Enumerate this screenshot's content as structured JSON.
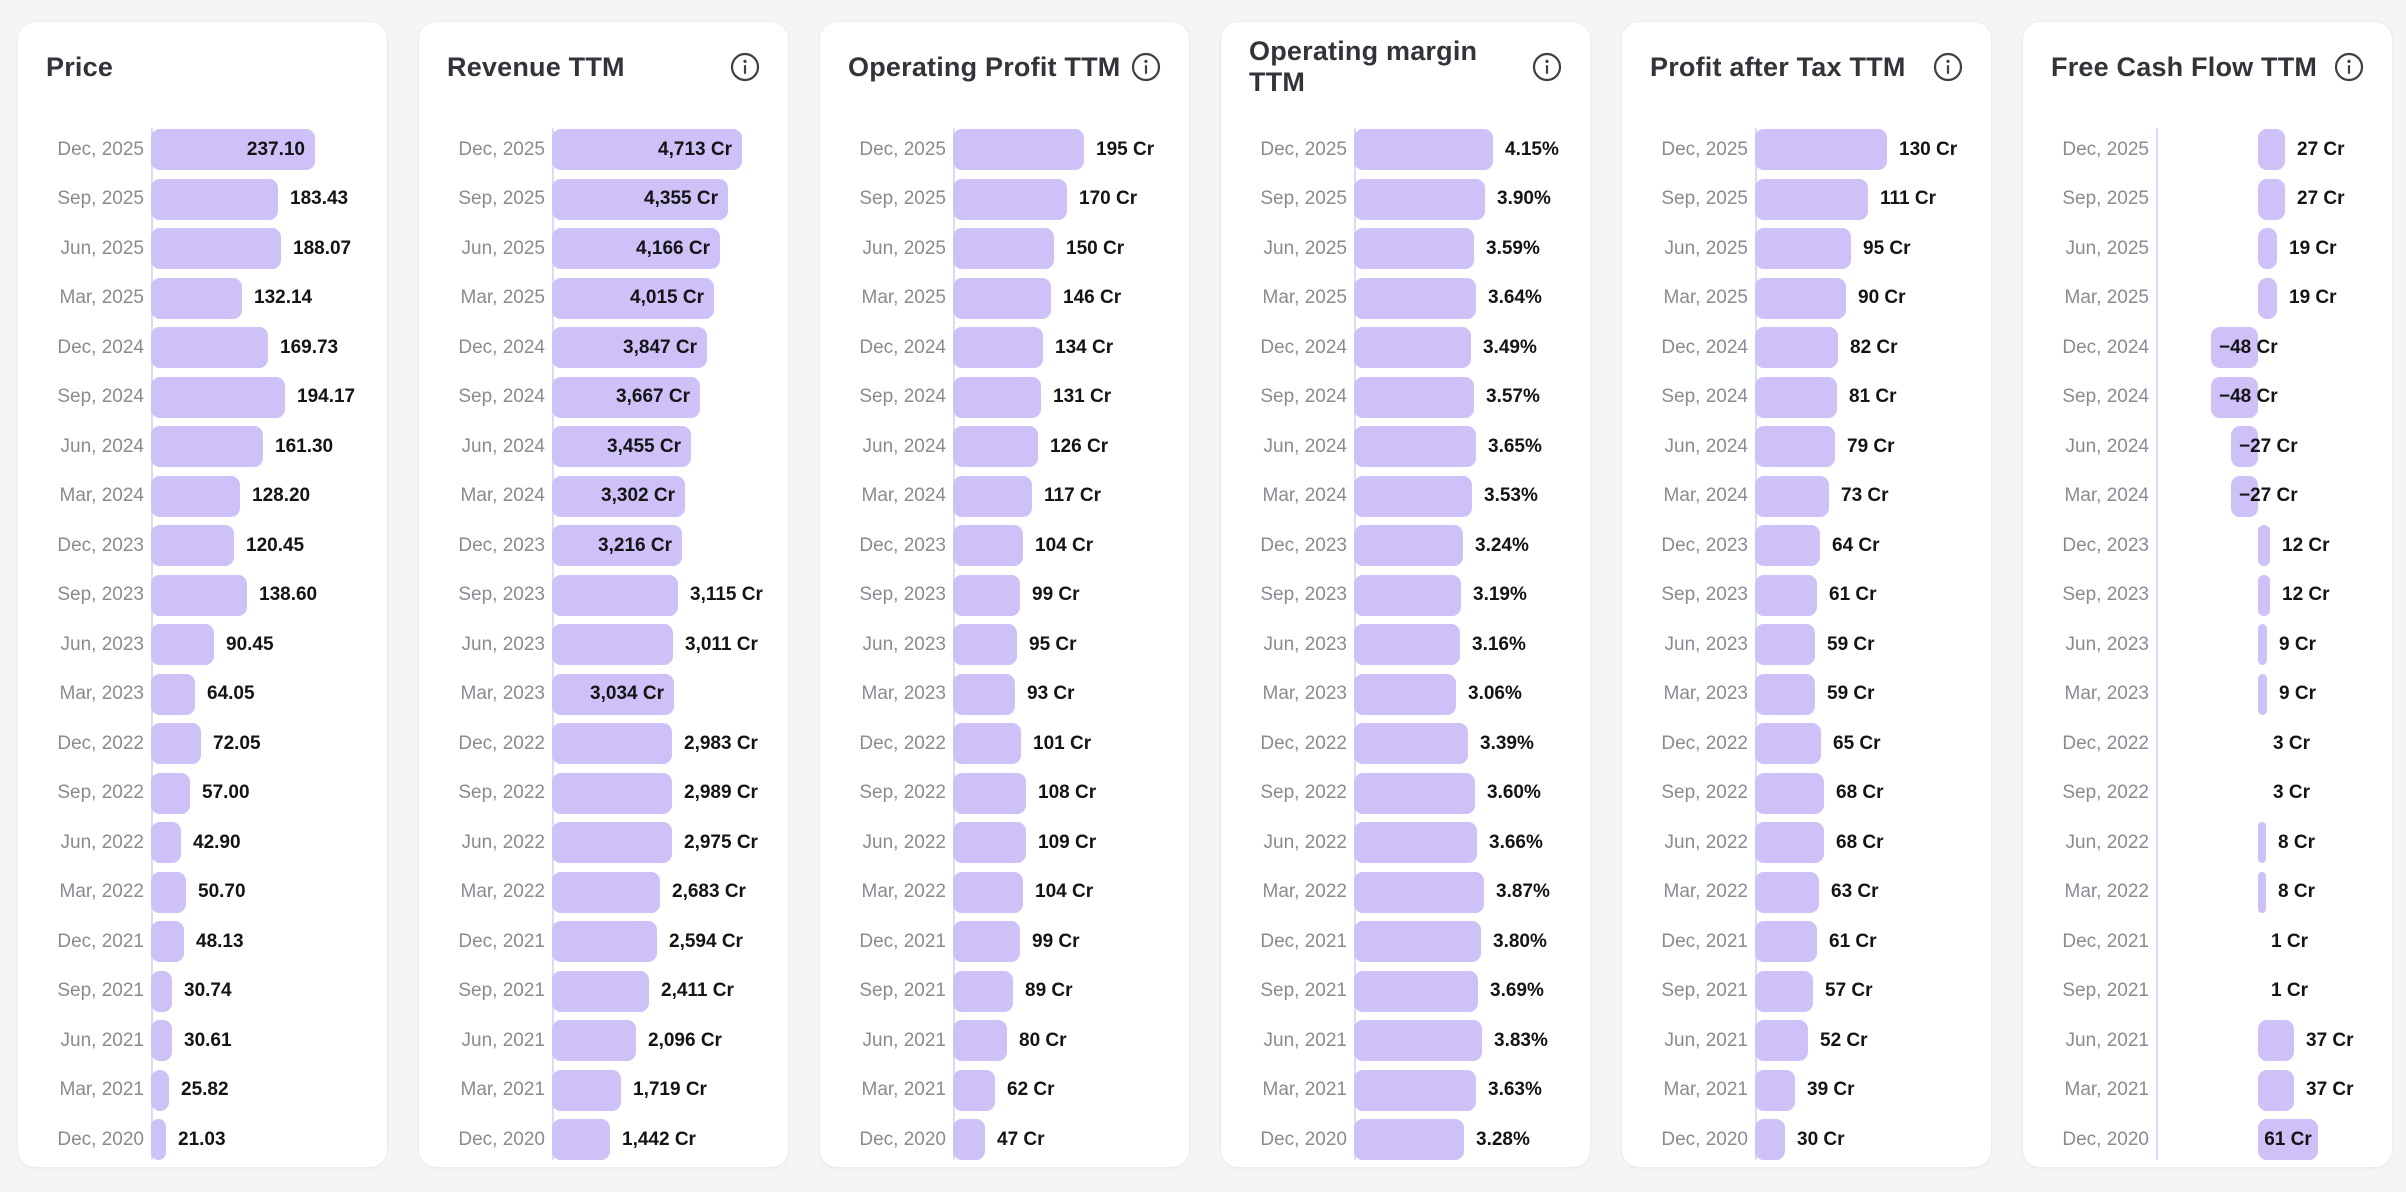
{
  "page": {
    "background": "#f5f5f7"
  },
  "colors": {
    "bar": "#cdc1f7",
    "axis_line": "#d4def2",
    "card_background": "#ffffff",
    "card_border": "#ececf0",
    "title_text": "#33333a",
    "period_text": "#8a8a92",
    "value_text": "#141417"
  },
  "icons": {
    "info": "info-icon"
  },
  "chart_data": [
    {
      "type": "bar",
      "orientation": "horizontal",
      "title": "Price",
      "info_icon": false,
      "unit": "",
      "grid": false,
      "xlim": [
        0,
        237.1
      ],
      "categories": [
        "Dec, 2025",
        "Sep, 2025",
        "Jun, 2025",
        "Mar, 2025",
        "Dec, 2024",
        "Sep, 2024",
        "Jun, 2024",
        "Mar, 2024",
        "Dec, 2023",
        "Sep, 2023",
        "Jun, 2023",
        "Mar, 2023",
        "Dec, 2022",
        "Sep, 2022",
        "Jun, 2022",
        "Mar, 2022",
        "Dec, 2021",
        "Sep, 2021",
        "Jun, 2021",
        "Mar, 2021",
        "Dec, 2020"
      ],
      "values": [
        237.1,
        183.43,
        188.07,
        132.14,
        169.73,
        194.17,
        161.3,
        128.2,
        120.45,
        138.6,
        90.45,
        64.05,
        72.05,
        57.0,
        42.9,
        50.7,
        48.13,
        30.74,
        30.61,
        25.82,
        21.03
      ],
      "value_labels": [
        "237.10",
        "183.43",
        "188.07",
        "132.14",
        "169.73",
        "194.17",
        "161.30",
        "128.20",
        "120.45",
        "138.60",
        "90.45",
        "64.05",
        "72.05",
        "57.00",
        "42.90",
        "50.70",
        "48.13",
        "30.74",
        "30.61",
        "25.82",
        "21.03"
      ],
      "inside_label_rows": [
        0
      ],
      "overlap_label_rows": [],
      "center_label_rows": []
    },
    {
      "type": "bar",
      "orientation": "horizontal",
      "title": "Revenue TTM",
      "info_icon": true,
      "unit": "Cr",
      "grid": false,
      "xlim": [
        0,
        4713
      ],
      "categories": [
        "Dec, 2025",
        "Sep, 2025",
        "Jun, 2025",
        "Mar, 2025",
        "Dec, 2024",
        "Sep, 2024",
        "Jun, 2024",
        "Mar, 2024",
        "Dec, 2023",
        "Sep, 2023",
        "Jun, 2023",
        "Mar, 2023",
        "Dec, 2022",
        "Sep, 2022",
        "Jun, 2022",
        "Mar, 2022",
        "Dec, 2021",
        "Sep, 2021",
        "Jun, 2021",
        "Mar, 2021",
        "Dec, 2020"
      ],
      "values": [
        4713,
        4355,
        4166,
        4015,
        3847,
        3667,
        3455,
        3302,
        3216,
        3115,
        3011,
        3034,
        2983,
        2989,
        2975,
        2683,
        2594,
        2411,
        2096,
        1719,
        1442
      ],
      "value_labels": [
        "4,713 Cr",
        "4,355 Cr",
        "4,166 Cr",
        "4,015 Cr",
        "3,847 Cr",
        "3,667 Cr",
        "3,455 Cr",
        "3,302 Cr",
        "3,216 Cr",
        "3,115 Cr",
        "3,011 Cr",
        "3,034 Cr",
        "2,983 Cr",
        "2,989 Cr",
        "2,975 Cr",
        "2,683 Cr",
        "2,594 Cr",
        "2,411 Cr",
        "2,096 Cr",
        "1,719 Cr",
        "1,442 Cr"
      ],
      "inside_label_rows": [
        0,
        1,
        2,
        3,
        4,
        5,
        6,
        7,
        8,
        11
      ],
      "overlap_label_rows": [],
      "center_label_rows": []
    },
    {
      "type": "bar",
      "orientation": "horizontal",
      "title": "Operating Profit TTM",
      "info_icon": true,
      "unit": "Cr",
      "grid": false,
      "xlim": [
        0,
        195
      ],
      "categories": [
        "Dec, 2025",
        "Sep, 2025",
        "Jun, 2025",
        "Mar, 2025",
        "Dec, 2024",
        "Sep, 2024",
        "Jun, 2024",
        "Mar, 2024",
        "Dec, 2023",
        "Sep, 2023",
        "Jun, 2023",
        "Mar, 2023",
        "Dec, 2022",
        "Sep, 2022",
        "Jun, 2022",
        "Mar, 2022",
        "Dec, 2021",
        "Sep, 2021",
        "Jun, 2021",
        "Mar, 2021",
        "Dec, 2020"
      ],
      "values": [
        195,
        170,
        150,
        146,
        134,
        131,
        126,
        117,
        104,
        99,
        95,
        93,
        101,
        108,
        109,
        104,
        99,
        89,
        80,
        62,
        47
      ],
      "value_labels": [
        "195 Cr",
        "170 Cr",
        "150 Cr",
        "146 Cr",
        "134 Cr",
        "131 Cr",
        "126 Cr",
        "117 Cr",
        "104 Cr",
        "99 Cr",
        "95 Cr",
        "93 Cr",
        "101 Cr",
        "108 Cr",
        "109 Cr",
        "104 Cr",
        "99 Cr",
        "89 Cr",
        "80 Cr",
        "62 Cr",
        "47 Cr"
      ],
      "inside_label_rows": [],
      "overlap_label_rows": [],
      "center_label_rows": []
    },
    {
      "type": "bar",
      "orientation": "horizontal",
      "title": "Operating margin TTM",
      "info_icon": true,
      "unit": "%",
      "grid": false,
      "xlim": [
        0,
        4.15
      ],
      "categories": [
        "Dec, 2025",
        "Sep, 2025",
        "Jun, 2025",
        "Mar, 2025",
        "Dec, 2024",
        "Sep, 2024",
        "Jun, 2024",
        "Mar, 2024",
        "Dec, 2023",
        "Sep, 2023",
        "Jun, 2023",
        "Mar, 2023",
        "Dec, 2022",
        "Sep, 2022",
        "Jun, 2022",
        "Mar, 2022",
        "Dec, 2021",
        "Sep, 2021",
        "Jun, 2021",
        "Mar, 2021",
        "Dec, 2020"
      ],
      "values": [
        4.15,
        3.9,
        3.59,
        3.64,
        3.49,
        3.57,
        3.65,
        3.53,
        3.24,
        3.19,
        3.16,
        3.06,
        3.39,
        3.6,
        3.66,
        3.87,
        3.8,
        3.69,
        3.83,
        3.63,
        3.28
      ],
      "value_labels": [
        "4.15%",
        "3.90%",
        "3.59%",
        "3.64%",
        "3.49%",
        "3.57%",
        "3.65%",
        "3.53%",
        "3.24%",
        "3.19%",
        "3.16%",
        "3.06%",
        "3.39%",
        "3.60%",
        "3.66%",
        "3.87%",
        "3.80%",
        "3.69%",
        "3.83%",
        "3.63%",
        "3.28%"
      ],
      "inside_label_rows": [],
      "overlap_label_rows": [],
      "center_label_rows": []
    },
    {
      "type": "bar",
      "orientation": "horizontal",
      "title": "Profit after Tax TTM",
      "info_icon": true,
      "unit": "Cr",
      "grid": false,
      "xlim": [
        0,
        130
      ],
      "categories": [
        "Dec, 2025",
        "Sep, 2025",
        "Jun, 2025",
        "Mar, 2025",
        "Dec, 2024",
        "Sep, 2024",
        "Jun, 2024",
        "Mar, 2024",
        "Dec, 2023",
        "Sep, 2023",
        "Jun, 2023",
        "Mar, 2023",
        "Dec, 2022",
        "Sep, 2022",
        "Jun, 2022",
        "Mar, 2022",
        "Dec, 2021",
        "Sep, 2021",
        "Jun, 2021",
        "Mar, 2021",
        "Dec, 2020"
      ],
      "values": [
        130,
        111,
        95,
        90,
        82,
        81,
        79,
        73,
        64,
        61,
        59,
        59,
        65,
        68,
        68,
        63,
        61,
        57,
        52,
        39,
        30
      ],
      "value_labels": [
        "130 Cr",
        "111 Cr",
        "95 Cr",
        "90 Cr",
        "82 Cr",
        "81 Cr",
        "79 Cr",
        "73 Cr",
        "64 Cr",
        "61 Cr",
        "59 Cr",
        "59 Cr",
        "65 Cr",
        "68 Cr",
        "68 Cr",
        "63 Cr",
        "61 Cr",
        "57 Cr",
        "52 Cr",
        "39 Cr",
        "30 Cr"
      ],
      "inside_label_rows": [],
      "overlap_label_rows": [],
      "center_label_rows": []
    },
    {
      "type": "bar",
      "orientation": "horizontal",
      "title": "Free Cash Flow TTM",
      "info_icon": true,
      "unit": "Cr",
      "grid": false,
      "zero_centered": true,
      "xlim": [
        -48,
        61
      ],
      "categories": [
        "Dec, 2025",
        "Sep, 2025",
        "Jun, 2025",
        "Mar, 2025",
        "Dec, 2024",
        "Sep, 2024",
        "Jun, 2024",
        "Mar, 2024",
        "Dec, 2023",
        "Sep, 2023",
        "Jun, 2023",
        "Mar, 2023",
        "Dec, 2022",
        "Sep, 2022",
        "Jun, 2022",
        "Mar, 2022",
        "Dec, 2021",
        "Sep, 2021",
        "Jun, 2021",
        "Mar, 2021",
        "Dec, 2020"
      ],
      "values": [
        27,
        27,
        19,
        19,
        -48,
        -48,
        -27,
        -27,
        12,
        12,
        9,
        9,
        3,
        3,
        8,
        8,
        1,
        1,
        37,
        37,
        61
      ],
      "value_labels": [
        "27 Cr",
        "27 Cr",
        "19 Cr",
        "19 Cr",
        "−48 Cr",
        "−48 Cr",
        "−27 Cr",
        "−27 Cr",
        "12 Cr",
        "12 Cr",
        "9 Cr",
        "9 Cr",
        "3 Cr",
        "3 Cr",
        "8 Cr",
        "8 Cr",
        "1 Cr",
        "1 Cr",
        "37 Cr",
        "37 Cr",
        "61 Cr"
      ],
      "inside_label_rows": [],
      "overlap_label_rows": [
        4,
        5,
        6,
        7
      ],
      "center_label_rows": [
        20
      ]
    }
  ]
}
